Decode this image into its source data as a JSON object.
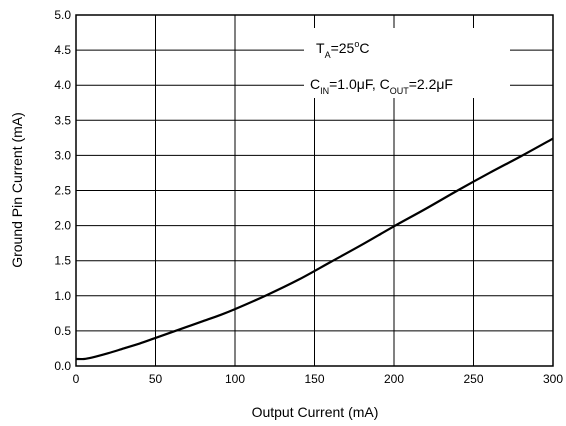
{
  "chart_data": {
    "type": "line",
    "xlabel": "Output Current (mA)",
    "ylabel": "Ground Pin Current (mA)",
    "xlim": [
      0,
      300
    ],
    "ylim": [
      0.0,
      5.0
    ],
    "xticks": [
      0,
      50,
      100,
      150,
      200,
      250,
      300
    ],
    "xtick_labels": [
      "0",
      "50",
      "100",
      "150",
      "200",
      "250",
      "300"
    ],
    "yticks": [
      0.0,
      0.5,
      1.0,
      1.5,
      2.0,
      2.5,
      3.0,
      3.5,
      4.0,
      4.5,
      5.0
    ],
    "ytick_labels": [
      "0.0",
      "0.5",
      "1.0",
      "1.5",
      "2.0",
      "2.5",
      "3.0",
      "3.5",
      "4.0",
      "4.5",
      "5.0"
    ],
    "grid": true,
    "annotations": {
      "line1": {
        "t": "T",
        "a": "A",
        "eq": "=25",
        "deg": "o",
        "c": "C"
      },
      "line2": {
        "c1": "C",
        "in": "IN",
        "v1": "=1.0μF, C",
        "out": "OUT",
        "v2": "=2.2μF"
      }
    },
    "series": [
      {
        "x": [
          0,
          5,
          10,
          20,
          30,
          40,
          50,
          60,
          70,
          80,
          90,
          100,
          120,
          140,
          160,
          180,
          200,
          220,
          240,
          260,
          280,
          300
        ],
        "y": [
          0.1,
          0.1,
          0.12,
          0.18,
          0.25,
          0.32,
          0.4,
          0.48,
          0.56,
          0.64,
          0.72,
          0.81,
          1.01,
          1.23,
          1.48,
          1.73,
          1.99,
          2.24,
          2.5,
          2.75,
          2.99,
          3.24
        ]
      }
    ]
  }
}
